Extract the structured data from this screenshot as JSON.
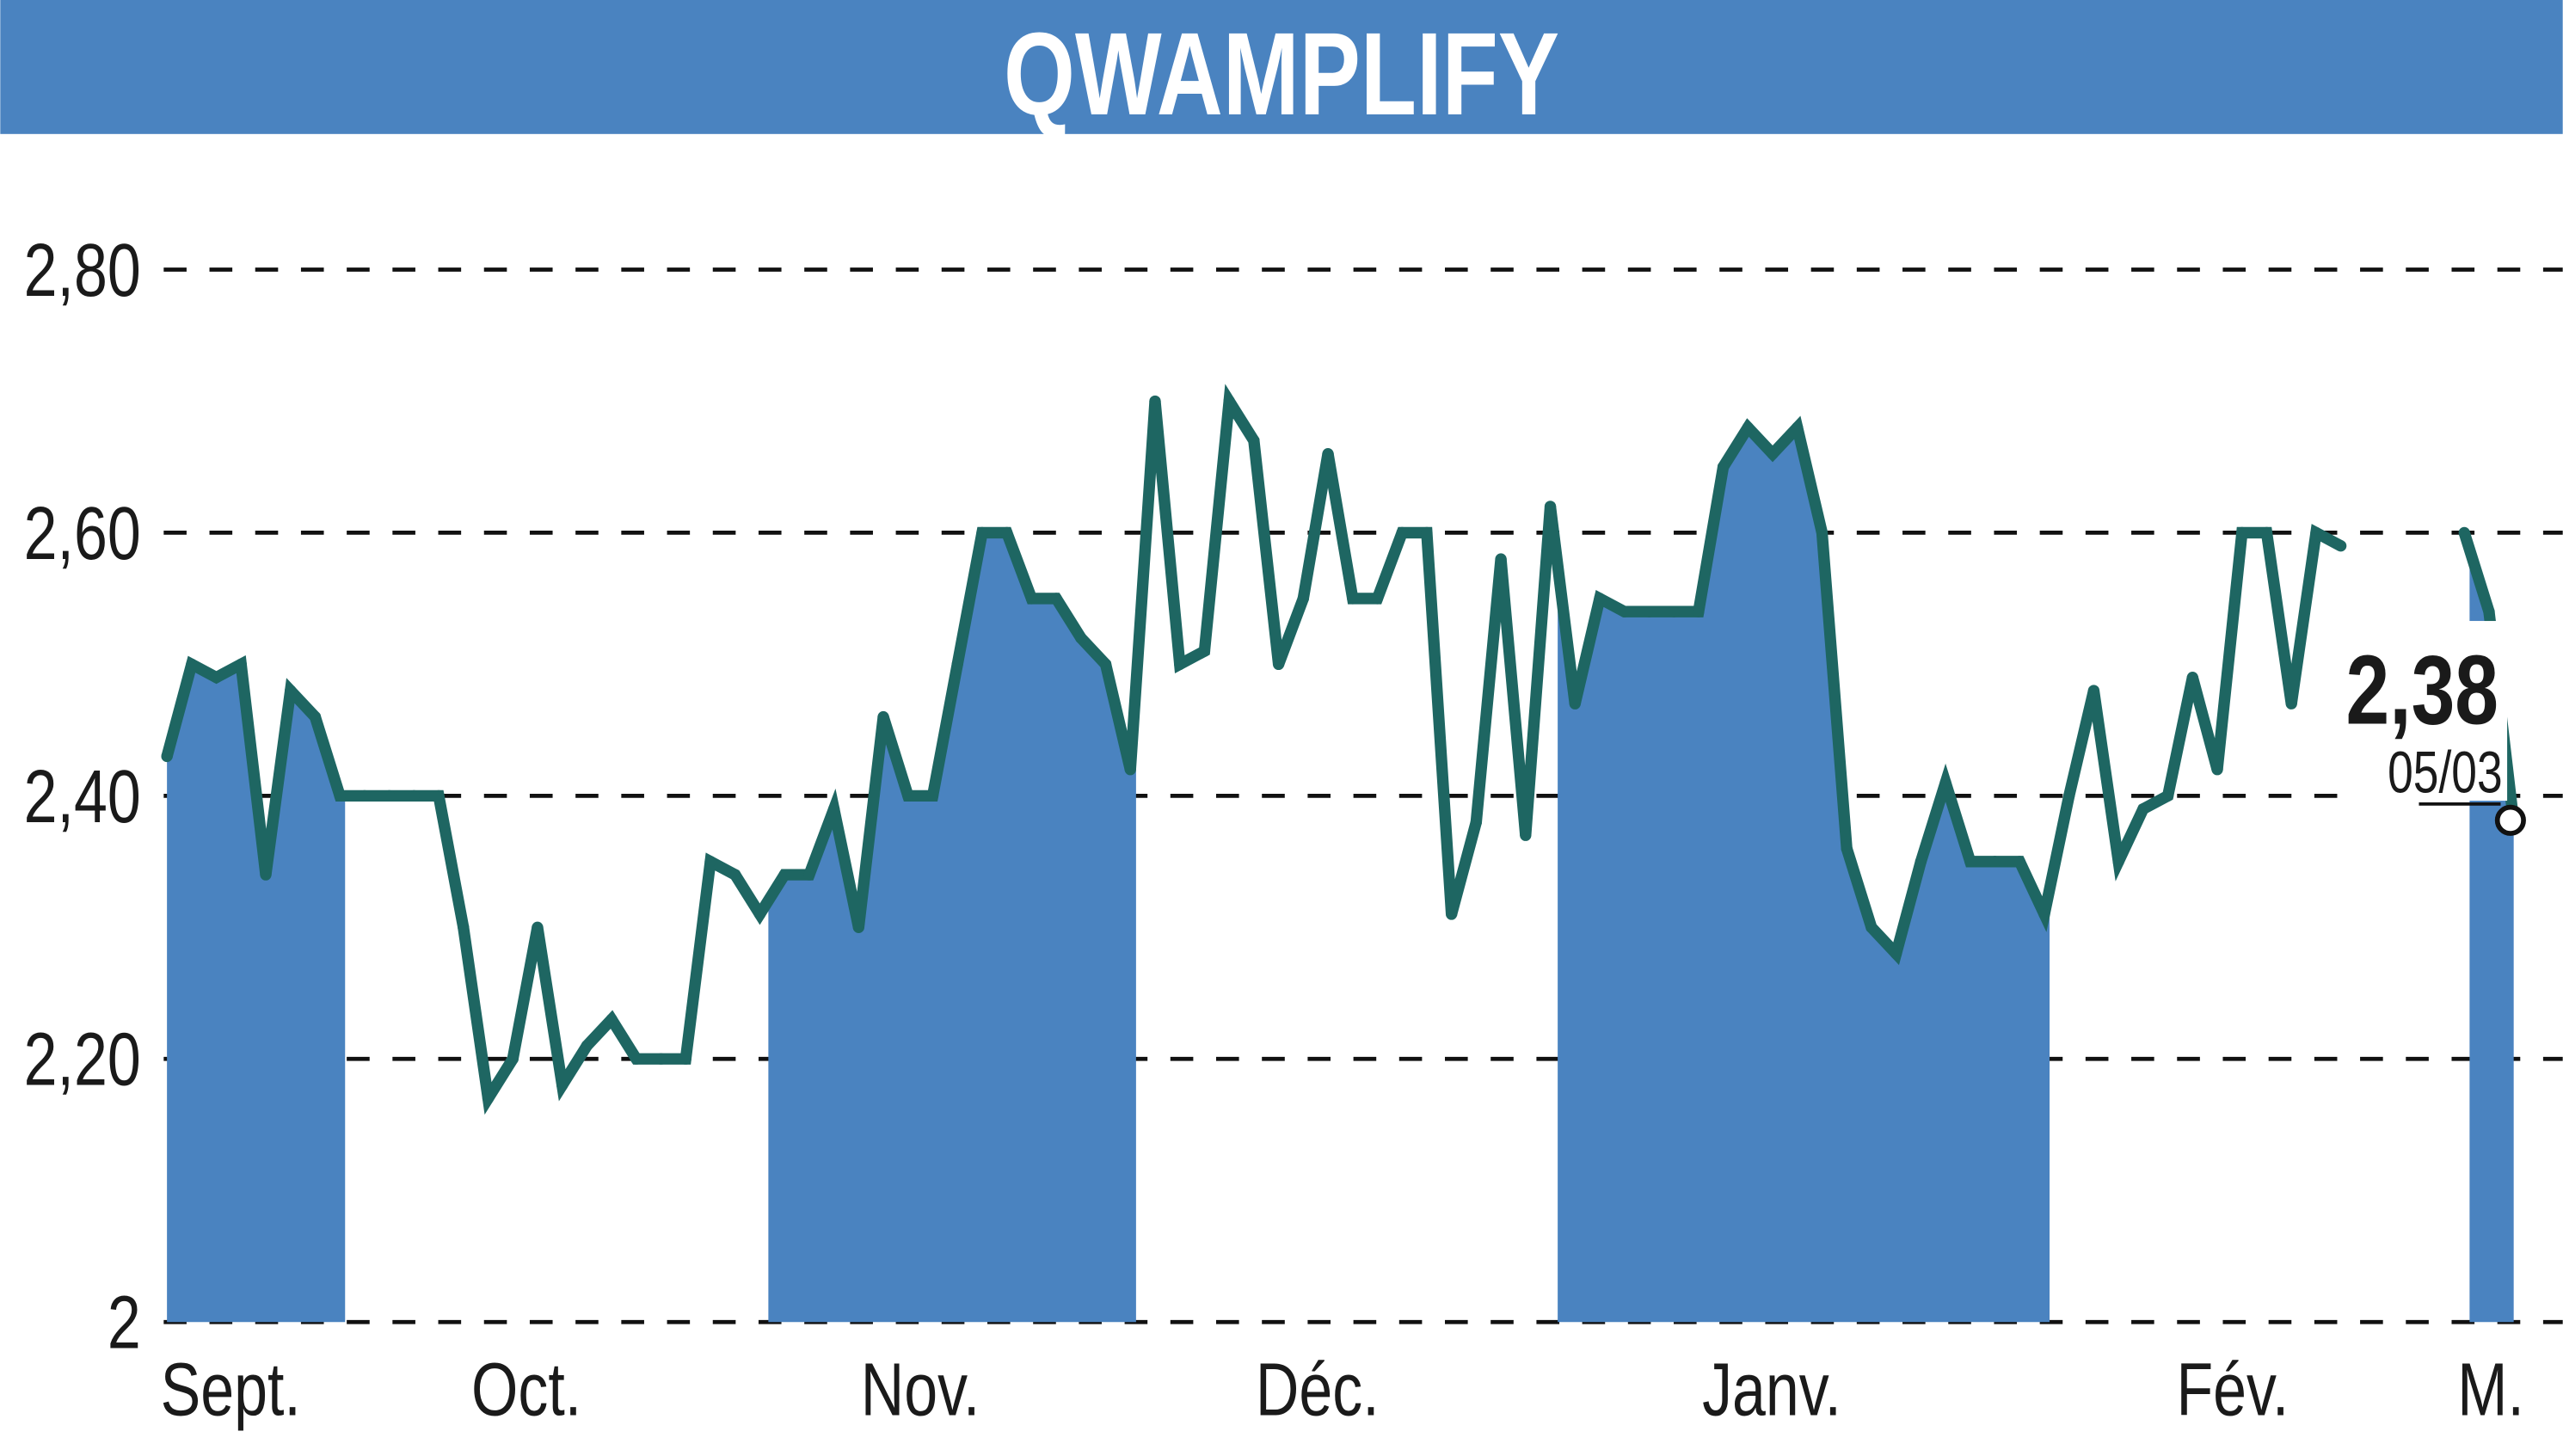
{
  "chart_data": {
    "type": "line",
    "title": "QWAMPLIFY",
    "xlabel": "",
    "ylabel": "",
    "ylim": [
      2.0,
      2.8
    ],
    "y_ticks": [
      "2,80",
      "2,60",
      "2,40",
      "2,20",
      "2"
    ],
    "y_tick_values": [
      2.8,
      2.6,
      2.4,
      2.2,
      2.0
    ],
    "grid": "horizontal dashed",
    "month_labels": [
      "Sept.",
      "Oct.",
      "Nov.",
      "Déc.",
      "Janv.",
      "Fév.",
      "M."
    ],
    "shaded_months": [
      "Sept.",
      "Nov.",
      "Janv.",
      "M."
    ],
    "values": [
      2.43,
      2.5,
      2.49,
      2.5,
      2.34,
      2.48,
      2.46,
      2.4,
      2.4,
      2.4,
      2.4,
      2.4,
      2.3,
      2.17,
      2.2,
      2.3,
      2.18,
      2.21,
      2.23,
      2.2,
      2.2,
      2.2,
      2.35,
      2.34,
      2.31,
      2.34,
      2.34,
      2.39,
      2.3,
      2.46,
      2.4,
      2.4,
      2.5,
      2.6,
      2.6,
      2.55,
      2.55,
      2.52,
      2.5,
      2.42,
      2.7,
      2.5,
      2.51,
      2.7,
      2.67,
      2.5,
      2.55,
      2.66,
      2.55,
      2.55,
      2.6,
      2.6,
      2.31,
      2.38,
      2.58,
      2.37,
      2.62,
      2.47,
      2.55,
      2.54,
      2.54,
      2.54,
      2.54,
      2.65,
      2.68,
      2.66,
      2.68,
      2.6,
      2.36,
      2.3,
      2.28,
      2.35,
      2.41,
      2.35,
      2.35,
      2.35,
      2.31,
      2.4,
      2.48,
      2.35,
      2.39,
      2.4,
      2.49,
      2.42,
      2.6,
      2.6,
      2.47,
      2.6,
      2.59,
      null,
      null,
      null,
      null,
      2.6,
      2.54,
      2.38
    ],
    "last_value": "2,38",
    "last_date": "05/03",
    "colors": {
      "header": "#4a83c0",
      "fill": "#4a83c0",
      "line": "#1e6662",
      "grid": "#111111"
    }
  }
}
